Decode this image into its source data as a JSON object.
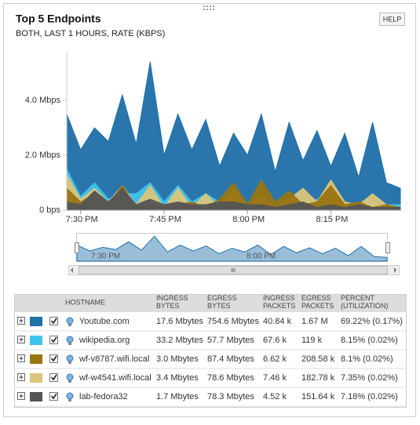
{
  "widget": {
    "title": "Top 5 Endpoints",
    "subtitle": "BOTH, LAST 1 HOURS, RATE (KBPS)",
    "help": "HELP"
  },
  "chart_data": {
    "type": "area",
    "categories": [
      null,
      "7:30 PM",
      null,
      null,
      null,
      null,
      null,
      "7:45 PM",
      null,
      null,
      null,
      null,
      null,
      "8:00 PM",
      null,
      null,
      null,
      null,
      null,
      "8:15 PM",
      null,
      null,
      null,
      null,
      null
    ],
    "ylim": [
      0,
      5.8
    ],
    "yticks": [
      {
        "value": 0,
        "label": "0 bps"
      },
      {
        "value": 2,
        "label": "2.0 Mbps"
      },
      {
        "value": 4,
        "label": "4.0 Mbps"
      }
    ],
    "series": [
      {
        "name": "Youtube.com",
        "color": "#1f6fa8",
        "values": [
          3.5,
          2.2,
          3.0,
          2.5,
          4.2,
          2.4,
          5.4,
          2.0,
          3.5,
          2.2,
          3.3,
          1.6,
          2.8,
          2.0,
          3.5,
          1.4,
          3.2,
          1.8,
          2.9,
          1.6,
          2.8,
          1.2,
          3.2,
          1.0,
          0.8
        ]
      },
      {
        "name": "wikipedia.org",
        "color": "#3fc3ec",
        "values": [
          1.5,
          0.5,
          1.0,
          0.4,
          0.6,
          0.6,
          1.0,
          0.3,
          0.9,
          0.3,
          0.6,
          0.3,
          0.8,
          0.2,
          0.5,
          0.2,
          0.3,
          0.2,
          0.4,
          0.2,
          0.3,
          0.1,
          0.3,
          0.2,
          0.2
        ]
      },
      {
        "name": "wf-v8787.wifi.local",
        "color": "#9a7410",
        "values": [
          0.8,
          0.3,
          0.6,
          0.2,
          0.9,
          0.1,
          0.2,
          0.1,
          0.2,
          0.3,
          0.1,
          0.4,
          1.0,
          0.2,
          1.1,
          0.3,
          0.7,
          0.2,
          0.3,
          0.9,
          0.2,
          0.3,
          0.1,
          0.2,
          0.1
        ]
      },
      {
        "name": "wf-w4541.wifi.local",
        "color": "#d9c57a",
        "values": [
          1.3,
          0.4,
          0.8,
          0.3,
          0.9,
          0.2,
          0.9,
          0.1,
          0.8,
          0.1,
          0.6,
          0.1,
          0.7,
          0.1,
          0.5,
          0.1,
          0.4,
          0.8,
          0.3,
          1.1,
          0.3,
          0.2,
          0.6,
          0.2,
          0.1
        ]
      },
      {
        "name": "lab-fedora32",
        "color": "#555555",
        "values": [
          0.3,
          0.2,
          0.7,
          0.3,
          0.8,
          0.2,
          0.4,
          0.2,
          0.3,
          0.2,
          0.2,
          0.3,
          0.3,
          0.2,
          0.2,
          0.1,
          0.2,
          0.3,
          0.1,
          0.2,
          0.1,
          0.2,
          0.1,
          0.1,
          0.1
        ]
      }
    ],
    "draw_order": [
      0,
      1,
      3,
      2,
      4
    ]
  },
  "navigator": {
    "labels": [
      "7:30 PM",
      "8:00 PM"
    ],
    "scroll_grip": "III"
  },
  "table": {
    "headers": [
      "HOSTNAME",
      "INGRESS BYTES",
      "EGRESS BYTES",
      "INGRESS PACKETS",
      "EGRESS PACKETS",
      "PERCENT (UTILIZATION)"
    ],
    "rows": [
      [
        "17.6 Mbytes",
        "754.6 Mbytes",
        "40.84 k",
        "1.67 M",
        "69.22% (0.17%)"
      ],
      [
        "33.2 Mbytes",
        "57.7 Mbytes",
        "67.6 k",
        "119 k",
        "8.15% (0.02%)"
      ],
      [
        "3.0 Mbytes",
        "87.4 Mbytes",
        "6.62 k",
        "208.58 k",
        "8.1% (0.02%)"
      ],
      [
        "3.4 Mbytes",
        "78.6 Mbytes",
        "7.46 k",
        "182.78 k",
        "7.35% (0.02%)"
      ],
      [
        "1.7 Mbytes",
        "78.3 Mbytes",
        "4.52 k",
        "151.64 k",
        "7.18% (0.02%)"
      ]
    ]
  }
}
